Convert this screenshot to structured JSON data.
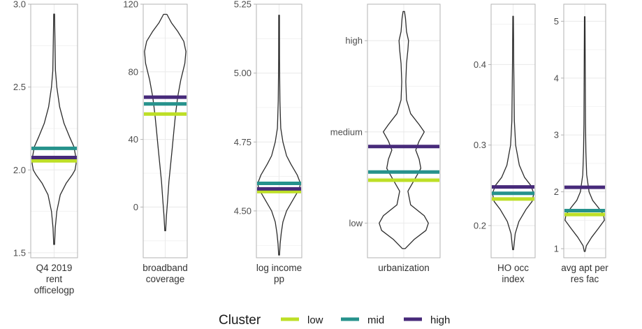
{
  "chart_data": {
    "type": "violin",
    "legend": {
      "title": "Cluster",
      "placement": "bottom",
      "entries": [
        {
          "key": "low",
          "label": "low",
          "color": "#bddf26"
        },
        {
          "key": "mid",
          "label": "mid",
          "color": "#26928c"
        },
        {
          "key": "high",
          "label": "high",
          "color": "#472a7a"
        }
      ]
    },
    "grid": true,
    "panels": [
      {
        "xlabel": [
          "Q4 2019",
          "rent",
          "officelogp"
        ],
        "ylim": [
          1.47,
          3.0
        ],
        "ticks": [
          {
            "value": 1.5,
            "label": "1.5"
          },
          {
            "value": 2.0,
            "label": "2.0"
          },
          {
            "value": 2.5,
            "label": "2.5"
          },
          {
            "value": 3.0,
            "label": "3.0"
          }
        ],
        "density": [
          [
            1.55,
            0.02
          ],
          [
            1.65,
            0.05
          ],
          [
            1.75,
            0.12
          ],
          [
            1.85,
            0.28
          ],
          [
            1.92,
            0.55
          ],
          [
            1.97,
            0.82
          ],
          [
            2.0,
            0.95
          ],
          [
            2.04,
            1.0
          ],
          [
            2.08,
            0.98
          ],
          [
            2.14,
            0.9
          ],
          [
            2.2,
            0.7
          ],
          [
            2.28,
            0.45
          ],
          [
            2.38,
            0.25
          ],
          [
            2.5,
            0.12
          ],
          [
            2.6,
            0.06
          ],
          [
            2.75,
            0.04
          ],
          [
            2.94,
            0.02
          ]
        ],
        "cluster_means": {
          "low": 2.055,
          "mid": 2.13,
          "high": 2.075
        }
      },
      {
        "xlabel": [
          "broadband",
          "coverage"
        ],
        "ylim": [
          -30,
          120
        ],
        "ticks": [
          {
            "value": 0,
            "label": "0"
          },
          {
            "value": 40,
            "label": "40"
          },
          {
            "value": 80,
            "label": "80"
          },
          {
            "value": 120,
            "label": "120"
          }
        ],
        "density": [
          [
            -14,
            0.02
          ],
          [
            -5,
            0.06
          ],
          [
            5,
            0.12
          ],
          [
            15,
            0.18
          ],
          [
            25,
            0.26
          ],
          [
            35,
            0.34
          ],
          [
            45,
            0.42
          ],
          [
            55,
            0.5
          ],
          [
            65,
            0.6
          ],
          [
            75,
            0.75
          ],
          [
            85,
            0.95
          ],
          [
            92,
            1.0
          ],
          [
            98,
            0.9
          ],
          [
            104,
            0.6
          ],
          [
            109,
            0.3
          ],
          [
            114,
            0.08
          ]
        ],
        "cluster_means": {
          "low": 55,
          "mid": 61,
          "high": 65
        }
      },
      {
        "xlabel": [
          "log income",
          "pp"
        ],
        "ylim": [
          4.33,
          5.25
        ],
        "ticks": [
          {
            "value": 4.5,
            "label": "4.50"
          },
          {
            "value": 4.75,
            "label": "4.75"
          },
          {
            "value": 5.0,
            "label": "5.00"
          },
          {
            "value": 5.25,
            "label": "5.25"
          }
        ],
        "density": [
          [
            4.34,
            0.02
          ],
          [
            4.38,
            0.05
          ],
          [
            4.42,
            0.1
          ],
          [
            4.46,
            0.18
          ],
          [
            4.5,
            0.35
          ],
          [
            4.54,
            0.65
          ],
          [
            4.58,
            0.95
          ],
          [
            4.6,
            1.0
          ],
          [
            4.63,
            0.85
          ],
          [
            4.67,
            0.55
          ],
          [
            4.7,
            0.35
          ],
          [
            4.75,
            0.18
          ],
          [
            4.8,
            0.08
          ],
          [
            4.9,
            0.04
          ],
          [
            5.05,
            0.02
          ],
          [
            5.21,
            0.015
          ]
        ],
        "cluster_means": {
          "low": 4.57,
          "mid": 4.6,
          "high": 4.58
        }
      },
      {
        "xlabel": [
          "urbanization"
        ],
        "ylim": [
          0.62,
          3.4
        ],
        "ticks": [
          {
            "value": 1,
            "label": "low"
          },
          {
            "value": 2,
            "label": "medium"
          },
          {
            "value": 3,
            "label": "high"
          }
        ],
        "density": [
          [
            0.72,
            0.04
          ],
          [
            0.82,
            0.3
          ],
          [
            0.92,
            0.65
          ],
          [
            1.0,
            0.72
          ],
          [
            1.08,
            0.6
          ],
          [
            1.2,
            0.2
          ],
          [
            1.35,
            0.12
          ],
          [
            1.5,
            0.35
          ],
          [
            1.6,
            0.5
          ],
          [
            1.7,
            0.45
          ],
          [
            1.8,
            0.35
          ],
          [
            1.9,
            0.45
          ],
          [
            2.0,
            0.6
          ],
          [
            2.08,
            0.45
          ],
          [
            2.2,
            0.2
          ],
          [
            2.35,
            0.08
          ],
          [
            2.55,
            0.06
          ],
          [
            2.75,
            0.08
          ],
          [
            2.9,
            0.12
          ],
          [
            3.0,
            0.14
          ],
          [
            3.1,
            0.08
          ],
          [
            3.25,
            0.05
          ],
          [
            3.32,
            0.02
          ]
        ],
        "cluster_means": {
          "low": 1.47,
          "mid": 1.56,
          "high": 1.84
        }
      },
      {
        "xlabel": [
          "HO occ",
          "index"
        ],
        "ylim": [
          0.16,
          0.475
        ],
        "ticks": [
          {
            "value": 0.2,
            "label": "0.2"
          },
          {
            "value": 0.3,
            "label": "0.3"
          },
          {
            "value": 0.4,
            "label": "0.4"
          }
        ],
        "density": [
          [
            0.17,
            0.02
          ],
          [
            0.19,
            0.1
          ],
          [
            0.205,
            0.28
          ],
          [
            0.22,
            0.62
          ],
          [
            0.23,
            0.92
          ],
          [
            0.24,
            1.0
          ],
          [
            0.25,
            0.85
          ],
          [
            0.26,
            0.55
          ],
          [
            0.275,
            0.3
          ],
          [
            0.3,
            0.12
          ],
          [
            0.33,
            0.06
          ],
          [
            0.4,
            0.03
          ],
          [
            0.46,
            0.015
          ]
        ],
        "cluster_means": {
          "low": 0.233,
          "mid": 0.24,
          "high": 0.248
        }
      },
      {
        "xlabel": [
          "avg apt per",
          "res fac"
        ],
        "ylim": [
          0.84,
          5.3
        ],
        "ticks": [
          {
            "value": 1,
            "label": "1"
          },
          {
            "value": 2,
            "label": "2"
          },
          {
            "value": 3,
            "label": "3"
          },
          {
            "value": 4,
            "label": "4"
          },
          {
            "value": 5,
            "label": "5"
          }
        ],
        "density": [
          [
            0.95,
            0.02
          ],
          [
            1.05,
            0.08
          ],
          [
            1.2,
            0.35
          ],
          [
            1.35,
            0.68
          ],
          [
            1.5,
            1.0
          ],
          [
            1.6,
            0.95
          ],
          [
            1.72,
            0.7
          ],
          [
            1.85,
            0.4
          ],
          [
            2.0,
            0.22
          ],
          [
            2.3,
            0.1
          ],
          [
            2.7,
            0.06
          ],
          [
            3.2,
            0.04
          ],
          [
            4.0,
            0.03
          ],
          [
            5.08,
            0.015
          ]
        ],
        "cluster_means": {
          "low": 1.6,
          "mid": 1.67,
          "high": 2.08
        }
      }
    ]
  }
}
